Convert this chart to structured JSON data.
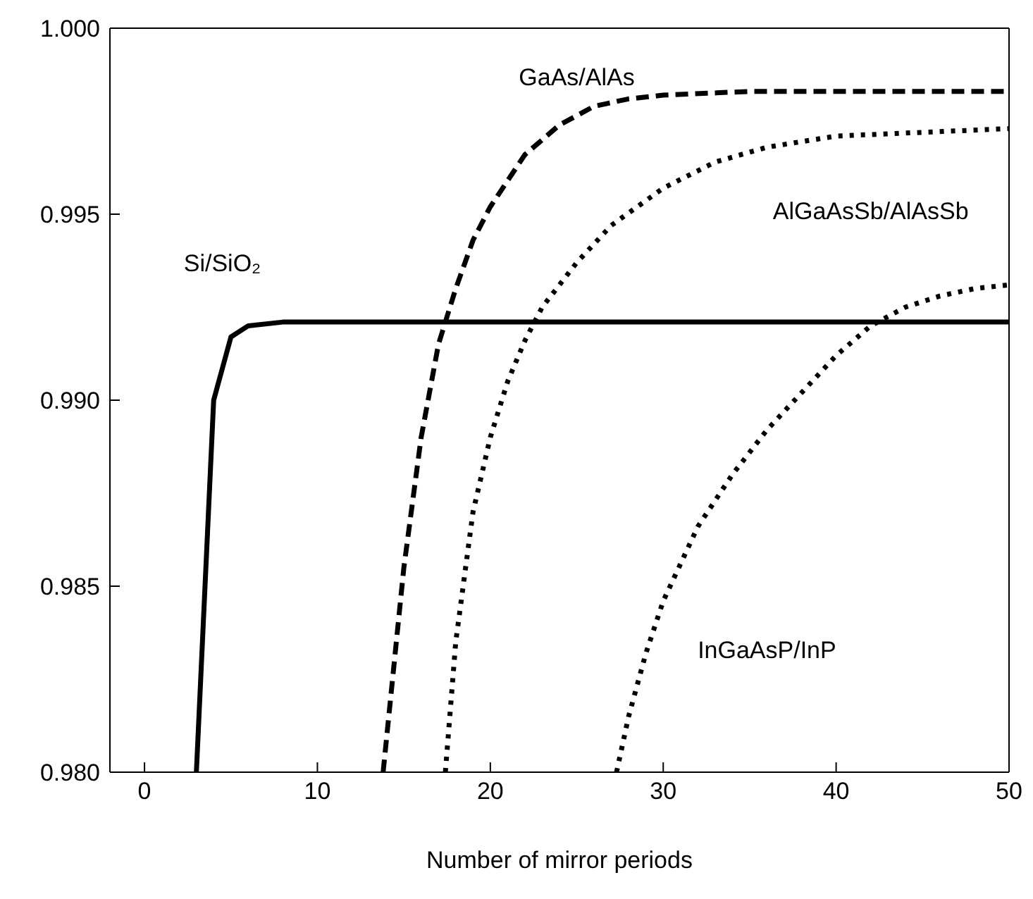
{
  "chart_data": {
    "type": "line",
    "xlabel": "Number of mirror periods",
    "xlim": [
      -2,
      50
    ],
    "xticks": [
      0,
      10,
      20,
      30,
      40,
      50
    ],
    "ylim": [
      0.98,
      1.0
    ],
    "yticks": [
      {
        "value": 0.98,
        "label": "0.980"
      },
      {
        "value": 0.985,
        "label": "0.985"
      },
      {
        "value": 0.99,
        "label": "0.990"
      },
      {
        "value": 0.995,
        "label": "0.995"
      },
      {
        "value": 1.0,
        "label": "1.000"
      }
    ],
    "grid": false,
    "legend": false,
    "marker": "none",
    "series": [
      {
        "name": "Si/SiO₂",
        "color": "#000000",
        "line_style": "solid",
        "x": [
          3,
          4,
          5,
          6,
          8,
          10,
          20,
          30,
          40,
          50
        ],
        "values": [
          0.98,
          0.99,
          0.9917,
          0.992,
          0.9921,
          0.9921,
          0.9921,
          0.9921,
          0.9921,
          0.9921
        ]
      },
      {
        "name": "GaAs/AlAs",
        "color": "#000000",
        "line_style": "dashed",
        "x": [
          13.8,
          15,
          16,
          17,
          18,
          19,
          20,
          22,
          24,
          26,
          28,
          30,
          35,
          40,
          50
        ],
        "values": [
          0.98,
          0.9855,
          0.989,
          0.9915,
          0.993,
          0.9943,
          0.9952,
          0.9966,
          0.9974,
          0.9979,
          0.9981,
          0.9982,
          0.9983,
          0.9983,
          0.9983
        ]
      },
      {
        "name": "AlGaAsSb/AlAsSb",
        "color": "#000000",
        "line_style": "dotted",
        "x": [
          17.4,
          18,
          19,
          20,
          21,
          22,
          23,
          25,
          27,
          30,
          33,
          36,
          40,
          45,
          50
        ],
        "values": [
          0.98,
          0.9835,
          0.987,
          0.989,
          0.9905,
          0.9916,
          0.9925,
          0.9937,
          0.9947,
          0.9957,
          0.9964,
          0.9968,
          0.9971,
          0.9972,
          0.9973
        ]
      },
      {
        "name": "InGaAsP/InP",
        "color": "#000000",
        "line_style": "dotted",
        "x": [
          27.3,
          28,
          29,
          30,
          32,
          34,
          36,
          38,
          40,
          42,
          44,
          46,
          48,
          50
        ],
        "values": [
          0.98,
          0.9815,
          0.9832,
          0.9846,
          0.9866,
          0.988,
          0.9892,
          0.9902,
          0.9912,
          0.992,
          0.9925,
          0.9928,
          0.993,
          0.9931
        ]
      }
    ]
  }
}
